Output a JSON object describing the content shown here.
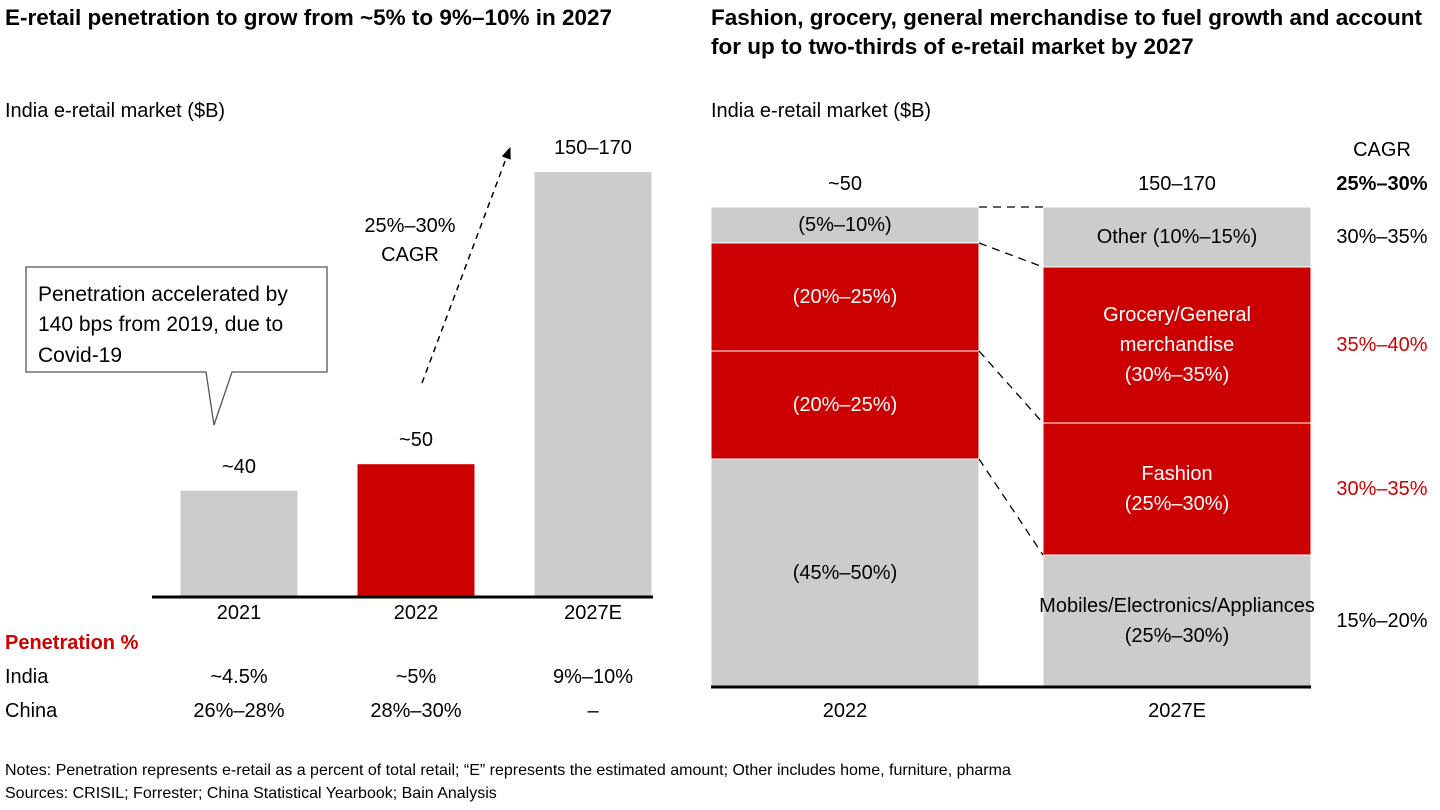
{
  "chart_data": [
    {
      "type": "bar",
      "title": "E-retail penetration to grow from ~5% to 9%–10% in 2027",
      "subtitle": "India e-retail market ($B)",
      "categories": [
        "2021",
        "2022",
        "2027E"
      ],
      "values": [
        40,
        50,
        160
      ],
      "value_labels": [
        "~40",
        "~50",
        "150–170"
      ],
      "colors": [
        "#cccccc",
        "#cc0000",
        "#cccccc"
      ],
      "annotation": "Penetration accelerated by 140 bps from 2019, due to Covid-19",
      "arrow_label": "25%–30% CAGR",
      "penetration": {
        "title": "Penetration %",
        "rows": [
          {
            "label": "India",
            "values": [
              "~4.5%",
              "~5%",
              "9%–10%"
            ]
          },
          {
            "label": "China",
            "values": [
              "26%–28%",
              "28%–30%",
              "–"
            ]
          }
        ]
      }
    },
    {
      "type": "stacked_bar",
      "title": "Fashion, grocery, general merchandise to fuel growth and account for up to two-thirds of e-retail market by 2027",
      "subtitle": "India e-retail market ($B)",
      "categories": [
        "2022",
        "2027E"
      ],
      "total_labels": [
        "~50",
        "150–170"
      ],
      "ylim": [
        0,
        100
      ],
      "cagr_title": "CAGR",
      "cagr_total": "25%–30%",
      "series": [
        {
          "name": "Mobiles/Electronics/Appliances",
          "color": "#cccccc",
          "label_color": "#000000",
          "values": [
            47.5,
            27.5
          ],
          "value_labels": [
            "(45%–50%)",
            "(25%–30%)"
          ],
          "cagr": "15%–20%",
          "cagr_color": "#000000"
        },
        {
          "name": "Fashion",
          "color": "#cc0000",
          "label_color": "#ffffff",
          "values": [
            22.5,
            27.5
          ],
          "value_labels": [
            "(20%–25%)",
            "(25%–30%)"
          ],
          "cagr": "30%–35%",
          "cagr_color": "#cc0000"
        },
        {
          "name": "Grocery/General merchandise",
          "color": "#cc0000",
          "label_color": "#ffffff",
          "values": [
            22.5,
            32.5
          ],
          "value_labels": [
            "(20%–25%)",
            "(30%–35%)"
          ],
          "cagr": "35%–40%",
          "cagr_color": "#cc0000"
        },
        {
          "name": "Other",
          "color": "#cccccc",
          "label_color": "#000000",
          "values": [
            7.5,
            12.5
          ],
          "value_labels": [
            "(5%–10%)",
            "(10%–15%)"
          ],
          "cagr": "30%–35%",
          "cagr_color": "#000000"
        }
      ]
    }
  ],
  "footer": {
    "notes": "Notes: Penetration represents e-retail as a percent of total retail; “E” represents the estimated amount; Other includes home, furniture, pharma",
    "sources": "Sources: CRISIL; Forrester; China Statistical Yearbook; Bain Analysis"
  }
}
